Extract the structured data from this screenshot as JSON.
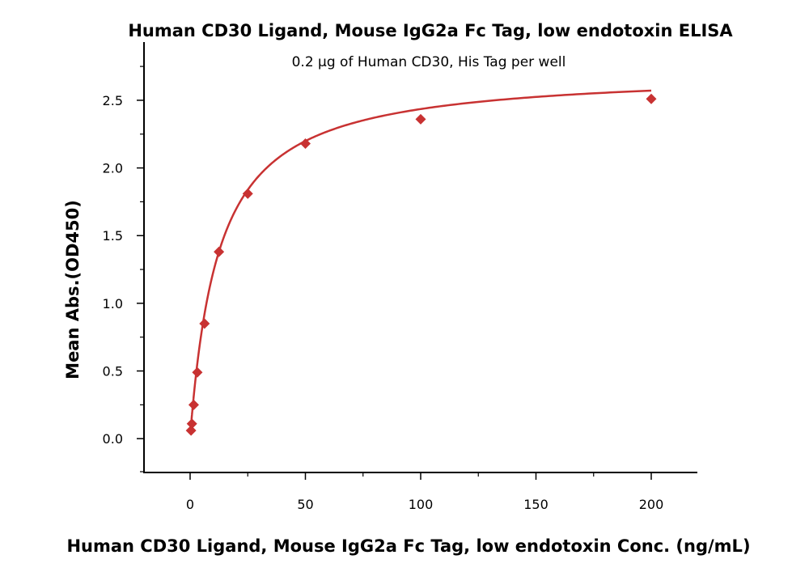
{
  "chart_data": {
    "type": "scatter",
    "title": "Human CD30 Ligand, Mouse IgG2a Fc Tag, low endotoxin ELISA",
    "subtitle": "0.2 µg of Human CD30, His Tag per well",
    "xlabel": "Human CD30 Ligand, Mouse IgG2a Fc Tag, low endotoxin Conc. (ng/mL)",
    "ylabel": "Mean Abs.(OD450)",
    "xlim": [
      -20,
      220
    ],
    "ylim": [
      -0.25,
      2.93
    ],
    "xticks": [
      "0",
      "50",
      "100",
      "150",
      "200"
    ],
    "yticks": [
      "0.0",
      "0.5",
      "1.0",
      "1.5",
      "2.0",
      "2.5"
    ],
    "grid": false,
    "color": "#c83232",
    "marker": "diamond",
    "fit_line": "sigmoidal fit curve",
    "series": [
      {
        "x": [
          0.39,
          0.78,
          1.5625,
          3.125,
          6.25,
          12.5,
          25,
          50,
          100,
          200
        ],
        "y": [
          0.06,
          0.11,
          0.25,
          0.49,
          0.85,
          1.38,
          1.81,
          2.18,
          2.36,
          2.51
        ]
      }
    ]
  }
}
